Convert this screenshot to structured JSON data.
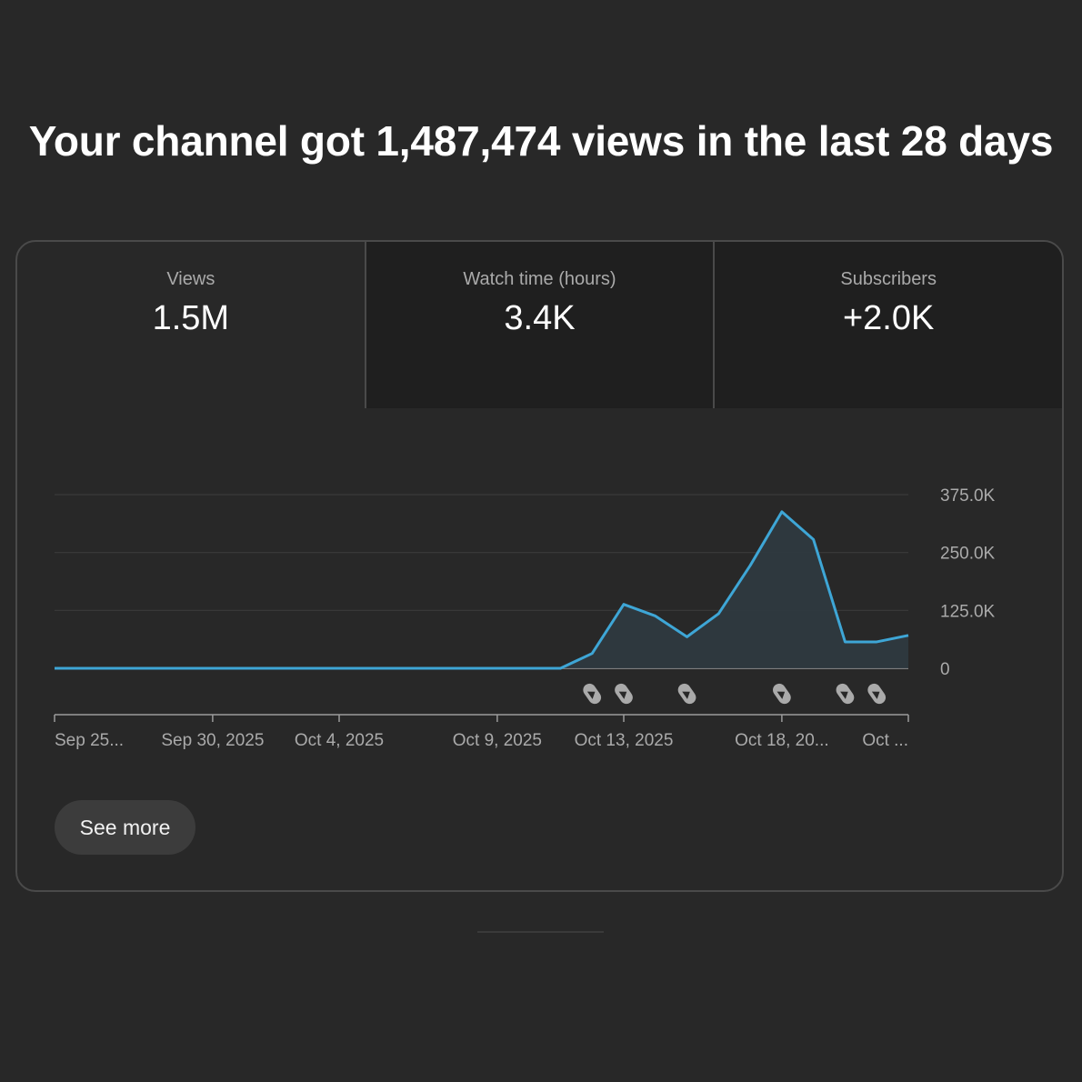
{
  "headline": "Your channel got 1,487,474 views in the last 28 days",
  "tabs": [
    {
      "label": "Views",
      "value": "1.5M",
      "active": true
    },
    {
      "label": "Watch time (hours)",
      "value": "3.4K",
      "active": false
    },
    {
      "label": "Subscribers",
      "value": "+2.0K",
      "active": false
    }
  ],
  "see_more_label": "See more",
  "colors": {
    "background": "#282828",
    "line": "#3ea6d6",
    "area": "#2f3a40",
    "grid": "#3a3a3a",
    "shorts_icon": "#aaaaaa"
  },
  "chart_data": {
    "type": "area",
    "x_tick_labels": [
      "Sep 25...",
      "Sep 30, 2025",
      "Oct 4, 2025",
      "Oct 9, 2025",
      "Oct 13, 2025",
      "Oct 18, 20...",
      "Oct ..."
    ],
    "x_tick_days": [
      0,
      5,
      9,
      14,
      18,
      23,
      27
    ],
    "y_tick_labels": [
      "375.0K",
      "250.0K",
      "125.0K",
      "0"
    ],
    "y_tick_values": [
      375000,
      250000,
      125000,
      0
    ],
    "ylim": [
      0,
      375000
    ],
    "x": [
      "Sep 25",
      "Sep 26",
      "Sep 27",
      "Sep 28",
      "Sep 29",
      "Sep 30",
      "Oct 1",
      "Oct 2",
      "Oct 3",
      "Oct 4",
      "Oct 5",
      "Oct 6",
      "Oct 7",
      "Oct 8",
      "Oct 9",
      "Oct 10",
      "Oct 11",
      "Oct 12",
      "Oct 13",
      "Oct 14",
      "Oct 15",
      "Oct 16",
      "Oct 17",
      "Oct 18",
      "Oct 19",
      "Oct 20",
      "Oct 21",
      "Oct 22"
    ],
    "values": [
      0,
      0,
      0,
      0,
      0,
      0,
      0,
      0,
      0,
      0,
      0,
      0,
      0,
      0,
      0,
      0,
      0,
      32000,
      138000,
      113000,
      68000,
      118000,
      222000,
      338000,
      278000,
      57000,
      57000,
      71000
    ],
    "shorts_markers_dates": [
      "Oct 12",
      "Oct 13",
      "Oct 15",
      "Oct 18",
      "Oct 20",
      "Oct 21"
    ],
    "grid": true
  }
}
